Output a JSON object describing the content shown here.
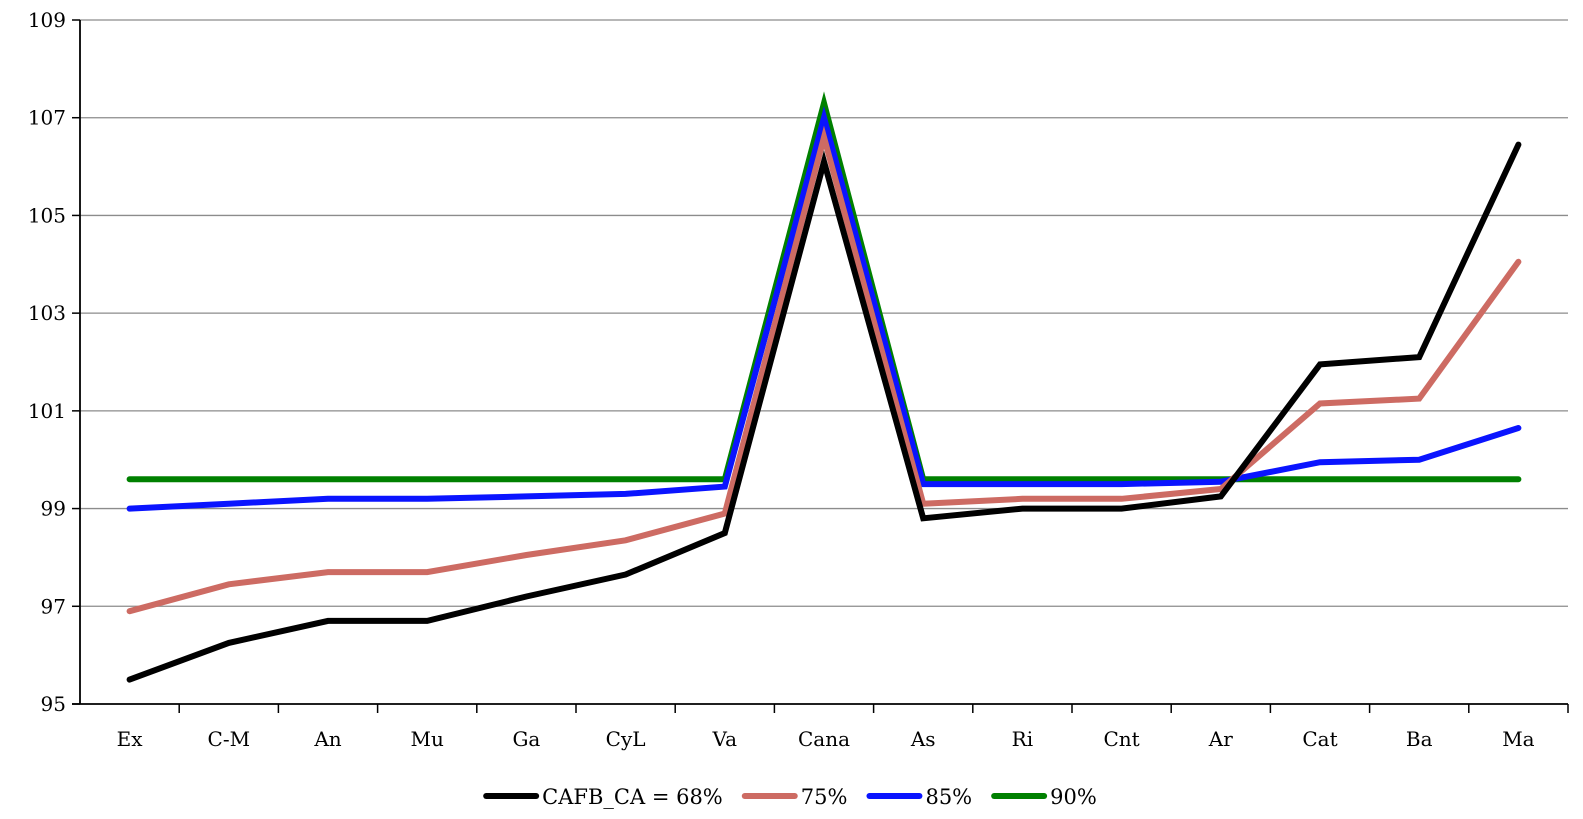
{
  "chart_data": {
    "type": "line",
    "title": "",
    "xlabel": "",
    "ylabel": "",
    "categories": [
      "Ex",
      "C-M",
      "An",
      "Mu",
      "Ga",
      "CyL",
      "Va",
      "Cana",
      "As",
      "Ri",
      "Cnt",
      "Ar",
      "Cat",
      "Ba",
      "Ma"
    ],
    "ylim": [
      95,
      109
    ],
    "yticks": [
      "95",
      "97",
      "99",
      "101",
      "103",
      "105",
      "107",
      "109"
    ],
    "grid": true,
    "legend_position": "bottom",
    "series": [
      {
        "name": "90%",
        "color": "#008000",
        "values": [
          99.6,
          99.6,
          99.6,
          99.6,
          99.6,
          99.6,
          99.6,
          107.3,
          99.6,
          99.6,
          99.6,
          99.6,
          99.6,
          99.6,
          99.6
        ]
      },
      {
        "name": "85%",
        "color": "#0A14FF",
        "values": [
          99.0,
          99.1,
          99.2,
          99.2,
          99.25,
          99.3,
          99.45,
          107.0,
          99.5,
          99.5,
          99.5,
          99.55,
          99.95,
          100.0,
          100.65
        ]
      },
      {
        "name": "75%",
        "color": "#CD6B63",
        "values": [
          96.9,
          97.45,
          97.7,
          97.7,
          98.05,
          98.35,
          98.9,
          106.6,
          99.1,
          99.2,
          99.2,
          99.4,
          101.15,
          101.25,
          104.05
        ]
      },
      {
        "name": "CAFB_CA = 68%",
        "color": "#000000",
        "values": [
          95.5,
          96.25,
          96.7,
          96.7,
          97.2,
          97.65,
          98.5,
          106.1,
          98.8,
          99.0,
          99.0,
          99.25,
          101.95,
          102.1,
          106.45
        ]
      }
    ],
    "legend_order": [
      3,
      2,
      1,
      0
    ]
  }
}
